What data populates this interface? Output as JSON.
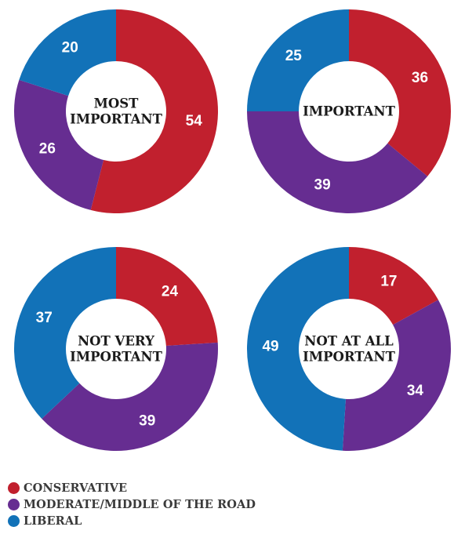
{
  "chart_data": {
    "type": "pie",
    "variant": "donut",
    "charts": [
      {
        "title_lines": [
          "MOST",
          "IMPORTANT"
        ],
        "values": {
          "conservative": 54,
          "moderate": 26,
          "liberal": 20
        }
      },
      {
        "title_lines": [
          "IMPORTANT"
        ],
        "values": {
          "conservative": 36,
          "moderate": 39,
          "liberal": 25
        }
      },
      {
        "title_lines": [
          "NOT VERY",
          "IMPORTANT"
        ],
        "values": {
          "conservative": 24,
          "moderate": 39,
          "liberal": 37
        }
      },
      {
        "title_lines": [
          "NOT AT ALL",
          "IMPORTANT"
        ],
        "values": {
          "conservative": 17,
          "moderate": 34,
          "liberal": 49
        }
      }
    ],
    "series_order": [
      "conservative",
      "moderate",
      "liberal"
    ],
    "legend": [
      {
        "key": "conservative",
        "label": "CONSERVATIVE",
        "color": "#c1202e"
      },
      {
        "key": "moderate",
        "label": "MODERATE/MIDDLE OF THE ROAD",
        "color": "#662d91"
      },
      {
        "key": "liberal",
        "label": "LIBERAL",
        "color": "#1272b8"
      }
    ],
    "legend_placement": "bottom-left"
  }
}
